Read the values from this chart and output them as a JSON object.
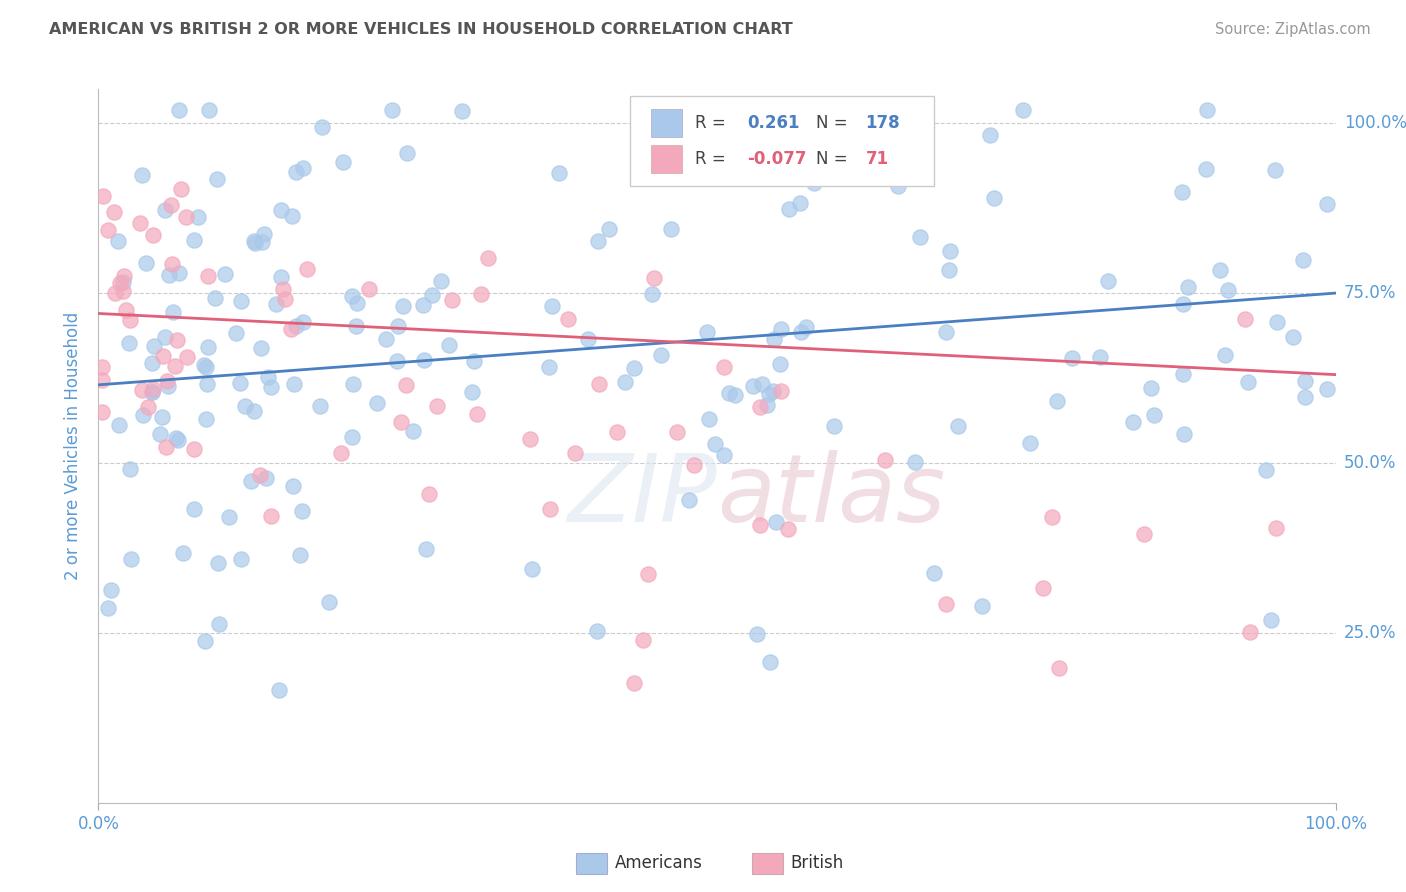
{
  "title": "AMERICAN VS BRITISH 2 OR MORE VEHICLES IN HOUSEHOLD CORRELATION CHART",
  "source": "Source: ZipAtlas.com",
  "ylabel": "2 or more Vehicles in Household",
  "watermark": "ZIPatlas",
  "americans_color": "#aac9ea",
  "british_color": "#f4a8bc",
  "americans_line_color": "#4a7fc1",
  "british_line_color": "#e0607a",
  "title_color": "#555555",
  "source_color": "#999999",
  "axis_label_color": "#5b9bd5",
  "tick_label_color": "#5b9bd5",
  "background_color": "#ffffff",
  "grid_color": "#cccccc",
  "y_tick_positions": [
    0.25,
    0.5,
    0.75,
    1.0
  ],
  "y_tick_labels": [
    "25.0%",
    "50.0%",
    "75.0%",
    "100.0%"
  ],
  "americans_R": 0.261,
  "americans_N": 178,
  "british_R": -0.077,
  "british_N": 71
}
